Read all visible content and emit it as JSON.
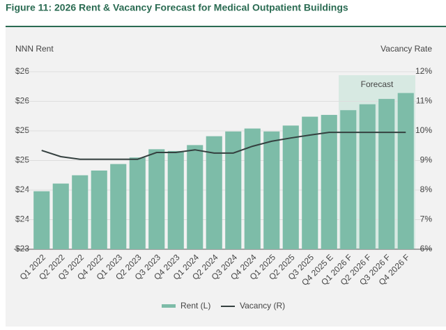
{
  "chart_data": {
    "type": "bar",
    "title": "Figure 11: 2026 Rent & Vacancy Forecast for Medical Outpatient Buildings",
    "y_label": "NNN Rent",
    "y2_label": "Vacancy Rate",
    "annotation": "Forecast",
    "categories": [
      "Q1 2022",
      "Q2 2022",
      "Q3 2022",
      "Q4 2022",
      "Q1 2023",
      "Q2 2023",
      "Q3 2023",
      "Q4 2023",
      "Q1 2024",
      "Q2 2024",
      "Q3 2024",
      "Q4 2024",
      "Q1 2025",
      "Q2 2025",
      "Q3 2025",
      "Q4 2025 E",
      "Q1 2026 F",
      "Q2 2026 F",
      "Q3 2026 F",
      "Q4 2026 F"
    ],
    "series": [
      {
        "name": "Rent (L)",
        "type": "bar",
        "color": "#7dbca8",
        "values": [
          23.98,
          24.11,
          24.25,
          24.33,
          24.44,
          24.55,
          24.69,
          24.66,
          24.76,
          24.91,
          24.99,
          25.04,
          24.99,
          25.09,
          25.24,
          25.27,
          25.35,
          25.45,
          25.54,
          25.64
        ]
      },
      {
        "name": "Vacancy (R)",
        "type": "line",
        "axis": "y2",
        "color": "#34403f",
        "values": [
          9.34,
          9.13,
          9.04,
          9.04,
          9.04,
          9.04,
          9.27,
          9.27,
          9.36,
          9.25,
          9.25,
          9.48,
          9.65,
          9.76,
          9.86,
          9.95,
          9.95,
          9.95,
          9.95,
          9.95
        ]
      }
    ],
    "ylim": [
      23,
      26
    ],
    "yticks": [
      {
        "value": 23,
        "label": "$23"
      },
      {
        "value": 23.5,
        "label": "$24"
      },
      {
        "value": 24,
        "label": "$24"
      },
      {
        "value": 24.5,
        "label": "$25"
      },
      {
        "value": 25,
        "label": "$25"
      },
      {
        "value": 25.5,
        "label": "$26"
      },
      {
        "value": 26,
        "label": "$26"
      }
    ],
    "y2lim": [
      6,
      12
    ],
    "y2ticks": [
      {
        "value": 6,
        "label": "6%"
      },
      {
        "value": 7,
        "label": "7%"
      },
      {
        "value": 8,
        "label": "8%"
      },
      {
        "value": 9,
        "label": "9%"
      },
      {
        "value": 10,
        "label": "10%"
      },
      {
        "value": 11,
        "label": "11%"
      },
      {
        "value": 12,
        "label": "12%"
      }
    ],
    "grid": true
  }
}
